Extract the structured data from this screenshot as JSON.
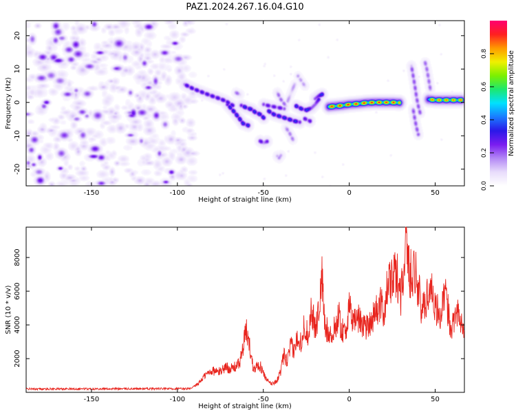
{
  "figure_title": "PAZ1.2024.267.16.04.G10",
  "chart_data": [
    {
      "type": "heatmap",
      "title": "PAZ1.2024.267.16.04.G10",
      "xlabel": "Height of straight line (km)",
      "ylabel": "Frequency (Hz)",
      "xlim": [
        -188,
        67
      ],
      "ylim": [
        -25,
        24.5
      ],
      "xticks": [
        -150,
        -100,
        -50,
        0,
        50
      ],
      "yticks": [
        -20,
        -10,
        0,
        10,
        20
      ],
      "colorbar": {
        "label": "Normalized spectral amplitude",
        "range": [
          0,
          1
        ],
        "ticks": [
          0.0,
          0.2,
          0.4,
          0.6,
          0.8
        ],
        "tick_labels": [
          "0.0",
          "0.2",
          "0.4",
          "0.6",
          "0.8"
        ],
        "colormap": [
          "#ffffff",
          "#e8dcfb",
          "#b388f5",
          "#7a1cf0",
          "#2a18e8",
          "#1a7bff",
          "#00e1ff",
          "#1ce870",
          "#7cf000",
          "#f0f000",
          "#ff9a00",
          "#ff2020",
          "#ff0070"
        ]
      },
      "noise_region": {
        "x_range": [
          -188,
          -91
        ],
        "y_range": [
          -25,
          24.5
        ],
        "typical_amplitude": 0.08
      },
      "ridges": [
        {
          "x": [
            -96,
            -91,
            -86,
            -81,
            -76,
            -72,
            -68
          ],
          "y": [
            5.5,
            4.2,
            3.2,
            2.2,
            1.3,
            0.5,
            -0.8
          ],
          "amplitude": 0.33
        },
        {
          "x": [
            -71,
            -67,
            -64,
            -62,
            -59
          ],
          "y": [
            -0.5,
            -2.8,
            -4.8,
            -6.2,
            -6.8
          ],
          "amplitude": 0.38
        },
        {
          "x": [
            -63,
            -60,
            -57,
            -55,
            -52,
            -50
          ],
          "y": [
            -0.8,
            -1.5,
            -2.0,
            -2.8,
            -3.5,
            -4.5
          ],
          "amplitude": 0.38
        },
        {
          "x": [
            -47,
            -44,
            -41,
            -38,
            -35,
            -32,
            -29
          ],
          "y": [
            -2.5,
            -3.5,
            -4.0,
            -4.5,
            -5.0,
            -5.5,
            -5.8
          ],
          "amplitude": 0.38
        },
        {
          "x": [
            -31,
            -28,
            -25,
            -22,
            -20,
            -18
          ],
          "y": [
            -1.0,
            -1.8,
            -2.2,
            -1.5,
            -0.5,
            1.0
          ],
          "amplitude": 0.38
        },
        {
          "x": [
            -20,
            -18,
            -16
          ],
          "y": [
            1.2,
            2.0,
            2.5
          ],
          "amplitude": 0.38
        },
        {
          "x": [
            -12,
            -8,
            -4,
            0,
            5,
            10,
            15,
            20,
            25,
            29
          ],
          "y": [
            -1.2,
            -1.0,
            -0.8,
            -0.5,
            -0.3,
            0.0,
            0.1,
            0.1,
            0.1,
            0.0
          ],
          "amplitude": 0.95
        },
        {
          "x": [
            -26,
            -23
          ],
          "y": [
            -4.8,
            -5.5
          ],
          "amplitude": 0.3
        },
        {
          "x": [
            -52,
            -50,
            -48
          ],
          "y": [
            -11.5,
            -12.0,
            -11.6
          ],
          "amplitude": 0.3
        },
        {
          "x": [
            -42,
            -41,
            -40
          ],
          "y": [
            -16.0,
            -16.5,
            -15.8
          ],
          "amplitude": 0.2
        },
        {
          "x": [
            -50,
            -47,
            -44,
            -41,
            -38
          ],
          "y": [
            -0.5,
            -0.9,
            -1.2,
            -1.5,
            -1.8
          ],
          "amplitude": 0.3
        },
        {
          "x": [
            -41,
            -40
          ],
          "y": [
            -3.8,
            -4.2
          ],
          "amplitude": 0.25
        },
        {
          "x": [
            -66,
            -64
          ],
          "y": [
            3.0,
            2.5
          ],
          "amplitude": 0.2
        },
        {
          "x": [
            -37,
            -38.5,
            -40,
            -41,
            -42
          ],
          "y": [
            -1.0,
            0.0,
            1.0,
            2.0,
            3.0
          ],
          "amplitude": 0.2
        },
        {
          "x": [
            -37,
            -35,
            -33
          ],
          "y": [
            -7.5,
            -9.0,
            -11.0
          ],
          "amplitude": 0.18
        },
        {
          "x": [
            -30,
            -28,
            -26
          ],
          "y": [
            8.0,
            6.5,
            5.0
          ],
          "amplitude": 0.15
        },
        {
          "x": [
            -36,
            -34,
            -32
          ],
          "y": [
            0.5,
            3.0,
            5.5
          ],
          "amplitude": 0.15
        },
        {
          "x": [
            36,
            37,
            38,
            39,
            40,
            41
          ],
          "y": [
            11.0,
            8.0,
            5.0,
            1.5,
            -1.0,
            -3.0
          ],
          "amplitude": 0.22
        },
        {
          "x": [
            37,
            38,
            39,
            40
          ],
          "y": [
            -2.0,
            -5.0,
            -7.5,
            -9.5
          ],
          "amplitude": 0.22
        },
        {
          "x": [
            44,
            45,
            46,
            47
          ],
          "y": [
            12.0,
            10.0,
            7.0,
            4.0
          ],
          "amplitude": 0.2
        },
        {
          "x": [
            46,
            50,
            55,
            60,
            65
          ],
          "y": [
            1.0,
            0.8,
            0.8,
            0.8,
            0.8
          ],
          "amplitude": 0.9
        }
      ]
    },
    {
      "type": "line",
      "xlabel": "Height of straight line (km)",
      "ylabel": "SNR (10 * v/v)",
      "xlim": [
        -188,
        67
      ],
      "ylim": [
        0,
        9800
      ],
      "xticks": [
        -150,
        -100,
        -50,
        0,
        50
      ],
      "yticks": [
        2000,
        4000,
        6000,
        8000
      ],
      "color": "#e8231c",
      "series": [
        {
          "x": [
            -188,
            -92,
            -88,
            -84,
            -80,
            -76,
            -72,
            -68,
            -64,
            -62,
            -60,
            -58,
            -56,
            -52,
            -48,
            -45,
            -42,
            -40,
            -38,
            -36,
            -34,
            -32,
            -30,
            -28,
            -26,
            -24,
            -22,
            -20,
            -18,
            -16,
            -14,
            -12,
            -10,
            -8,
            -6,
            -4,
            -2,
            0,
            2,
            5,
            10,
            15,
            18,
            20,
            22,
            25,
            28,
            30,
            32,
            33,
            35,
            38,
            40,
            42,
            45,
            48,
            50,
            53,
            56,
            58,
            60,
            62,
            65,
            67
          ],
          "y": [
            200,
            220,
            500,
            1000,
            1300,
            1200,
            1500,
            1400,
            1700,
            2500,
            3700,
            2800,
            1500,
            1600,
            700,
            500,
            700,
            1200,
            2200,
            1800,
            2800,
            2400,
            3400,
            3000,
            4000,
            3400,
            5000,
            3800,
            4600,
            6900,
            3600,
            3800,
            3200,
            4000,
            4500,
            3600,
            3800,
            4900,
            4400,
            4400,
            3900,
            4700,
            5200,
            4800,
            6100,
            6800,
            6900,
            5800,
            7800,
            9800,
            7000,
            7400,
            6400,
            4800,
            5600,
            6400,
            5100,
            4500,
            5800,
            4500,
            3800,
            5200,
            4000,
            3500
          ]
        }
      ]
    }
  ]
}
